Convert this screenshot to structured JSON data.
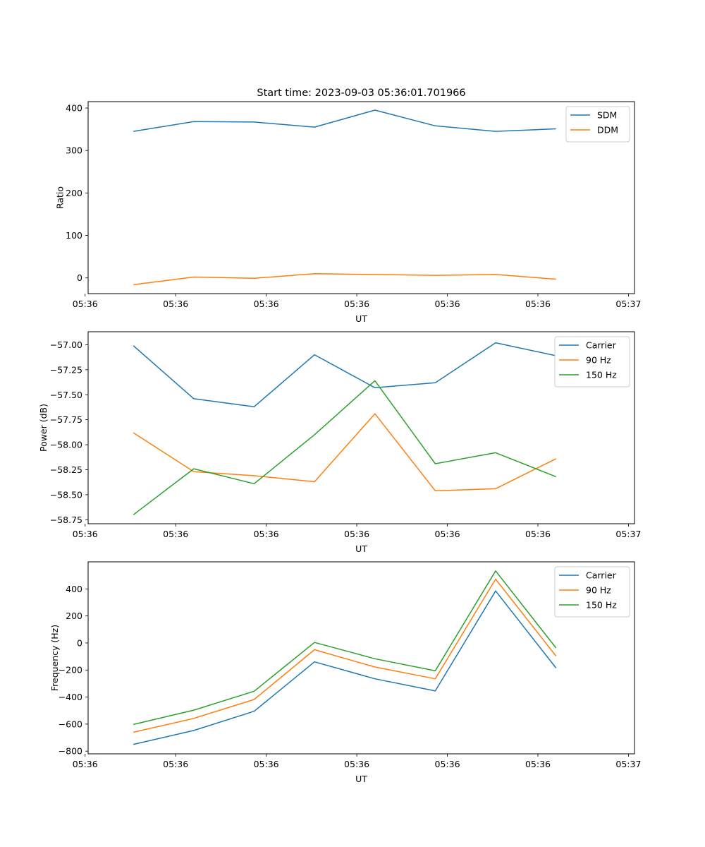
{
  "title": "Start time: 2023-09-03 05:36:01.701966",
  "chart_data": [
    {
      "type": "line",
      "title": "Start time: 2023-09-03 05:36:01.701966",
      "xlabel": "UT",
      "ylabel": "Ratio",
      "x": [
        1,
        2,
        3,
        4,
        5,
        6,
        7,
        8
      ],
      "xlim": [
        0.25,
        9.3
      ],
      "xticks": [
        0.2,
        1.7,
        3.2,
        4.7,
        6.2,
        7.7,
        9.2
      ],
      "xticklabels": [
        "05:36",
        "05:36",
        "05:36",
        "05:36",
        "05:36",
        "05:36",
        "05:37"
      ],
      "ylim": [
        -37,
        415
      ],
      "yticks": [
        0,
        100,
        200,
        300,
        400
      ],
      "yticklabels": [
        "0",
        "100",
        "200",
        "300",
        "400"
      ],
      "legend": "top-right",
      "series": [
        {
          "name": "SDM",
          "color": "#1f77b4",
          "values": [
            345,
            368,
            367,
            355,
            395,
            358,
            345,
            351
          ]
        },
        {
          "name": "DDM",
          "color": "#ff7f0e",
          "values": [
            -16,
            2,
            -1,
            10,
            8,
            6,
            8,
            -3
          ]
        }
      ]
    },
    {
      "type": "line",
      "xlabel": "UT",
      "ylabel": "Power (dB)",
      "x": [
        1,
        2,
        3,
        4,
        5,
        6,
        7,
        8
      ],
      "xlim": [
        0.25,
        9.3
      ],
      "xticks": [
        0.2,
        1.7,
        3.2,
        4.7,
        6.2,
        7.7,
        9.2
      ],
      "xticklabels": [
        "05:36",
        "05:36",
        "05:36",
        "05:36",
        "05:36",
        "05:36",
        "05:37"
      ],
      "ylim": [
        -58.79,
        -56.87
      ],
      "yticks": [
        -57.0,
        -57.25,
        -57.5,
        -57.75,
        -58.0,
        -58.25,
        -58.5,
        -58.75
      ],
      "yticklabels": [
        "−57.00",
        "−57.25",
        "−57.50",
        "−57.75",
        "−58.00",
        "−58.25",
        "−58.50",
        "−58.75"
      ],
      "legend": "top-right",
      "series": [
        {
          "name": "Carrier",
          "color": "#1f77b4",
          "values": [
            -57.01,
            -57.54,
            -57.62,
            -57.1,
            -57.43,
            -57.38,
            -56.98,
            -57.11
          ]
        },
        {
          "name": "90 Hz",
          "color": "#ff7f0e",
          "values": [
            -57.88,
            -58.27,
            -58.31,
            -58.37,
            -57.69,
            -58.46,
            -58.44,
            -58.14
          ]
        },
        {
          "name": "150 Hz",
          "color": "#2ca02c",
          "values": [
            -58.7,
            -58.24,
            -58.39,
            -57.9,
            -57.36,
            -58.19,
            -58.08,
            -58.32
          ]
        }
      ]
    },
    {
      "type": "line",
      "xlabel": "UT",
      "ylabel": "Frequency (Hz)",
      "x": [
        1,
        2,
        3,
        4,
        5,
        6,
        7,
        8
      ],
      "xlim": [
        0.25,
        9.3
      ],
      "xticks": [
        0.2,
        1.7,
        3.2,
        4.7,
        6.2,
        7.7,
        9.2
      ],
      "xticklabels": [
        "05:36",
        "05:36",
        "05:36",
        "05:36",
        "05:36",
        "05:36",
        "05:37"
      ],
      "ylim": [
        -820,
        600
      ],
      "yticks": [
        -800,
        -600,
        -400,
        -200,
        0,
        200,
        400
      ],
      "yticklabels": [
        "−800",
        "−600",
        "−400",
        "−200",
        "0",
        "200",
        "400"
      ],
      "legend": "top-right",
      "series": [
        {
          "name": "Carrier",
          "color": "#1f77b4",
          "values": [
            -750,
            -647,
            -505,
            -140,
            -265,
            -355,
            385,
            -185
          ]
        },
        {
          "name": "90 Hz",
          "color": "#ff7f0e",
          "values": [
            -660,
            -558,
            -418,
            -50,
            -178,
            -265,
            472,
            -97
          ]
        },
        {
          "name": "150 Hz",
          "color": "#2ca02c",
          "values": [
            -603,
            -497,
            -357,
            4,
            -117,
            -206,
            533,
            -37
          ]
        }
      ]
    }
  ]
}
